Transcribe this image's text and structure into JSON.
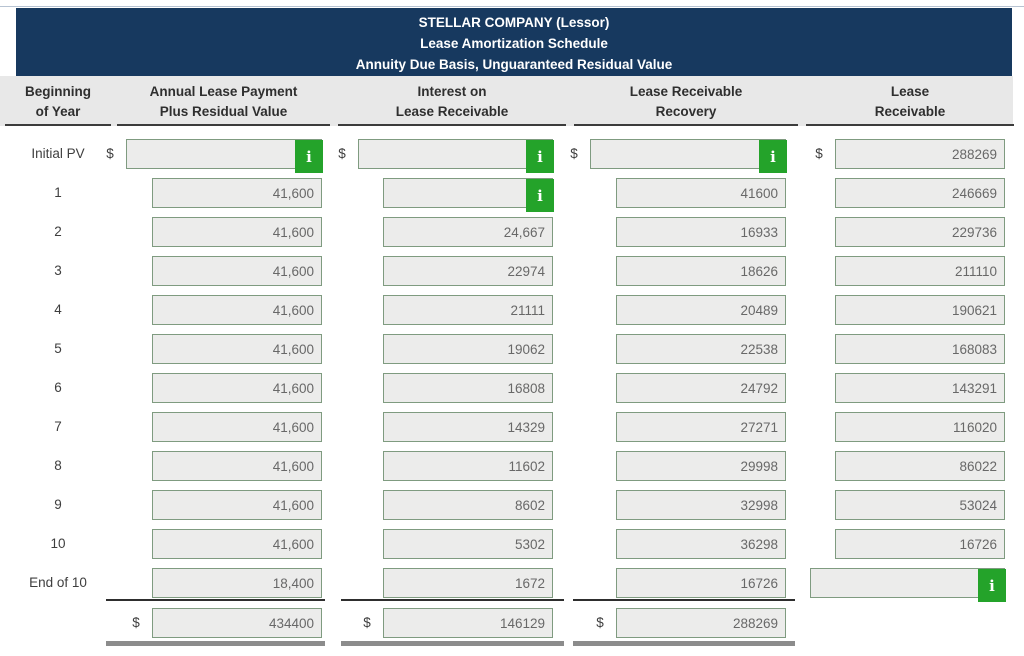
{
  "header": {
    "lines": [
      "STELLAR COMPANY (Lessor)",
      "Lease Amortization Schedule",
      "Annuity Due Basis, Unguaranteed Residual Value"
    ]
  },
  "columns": [
    {
      "id": "beginning-of-year",
      "lines": [
        "Beginning",
        "of Year"
      ]
    },
    {
      "id": "annual-lease-payment",
      "lines": [
        "Annual Lease Payment",
        "Plus Residual Value"
      ]
    },
    {
      "id": "interest-on-lease-receivable",
      "lines": [
        "Interest on",
        "Lease Receivable"
      ]
    },
    {
      "id": "lease-receivable-recovery",
      "lines": [
        "Lease Receivable",
        "Recovery"
      ]
    },
    {
      "id": "lease-receivable",
      "lines": [
        "Lease",
        "Receivable"
      ]
    }
  ],
  "currency_symbol": "$",
  "info_icon_glyph": "i",
  "rows": [
    {
      "id": "initial-pv",
      "label": "Initial PV",
      "cells": {
        "payment": {
          "value": "",
          "dollar": true,
          "info": true,
          "wide": true
        },
        "interest": {
          "value": "",
          "dollar": true,
          "info": true,
          "wide": true
        },
        "recovery": {
          "value": "",
          "dollar": true,
          "info": true,
          "wide": true
        },
        "receivable": {
          "value": "288269",
          "dollar": true
        }
      }
    },
    {
      "id": "year-1",
      "label": "1",
      "cells": {
        "payment": {
          "value": "41,600"
        },
        "interest": {
          "value": "",
          "info": true
        },
        "recovery": {
          "value": "41600"
        },
        "receivable": {
          "value": "246669"
        }
      }
    },
    {
      "id": "year-2",
      "label": "2",
      "cells": {
        "payment": {
          "value": "41,600"
        },
        "interest": {
          "value": "24,667"
        },
        "recovery": {
          "value": "16933"
        },
        "receivable": {
          "value": "229736"
        }
      }
    },
    {
      "id": "year-3",
      "label": "3",
      "cells": {
        "payment": {
          "value": "41,600"
        },
        "interest": {
          "value": "22974"
        },
        "recovery": {
          "value": "18626"
        },
        "receivable": {
          "value": "211110"
        }
      }
    },
    {
      "id": "year-4",
      "label": "4",
      "cells": {
        "payment": {
          "value": "41,600"
        },
        "interest": {
          "value": "21111"
        },
        "recovery": {
          "value": "20489"
        },
        "receivable": {
          "value": "190621"
        }
      }
    },
    {
      "id": "year-5",
      "label": "5",
      "cells": {
        "payment": {
          "value": "41,600"
        },
        "interest": {
          "value": "19062"
        },
        "recovery": {
          "value": "22538"
        },
        "receivable": {
          "value": "168083"
        }
      }
    },
    {
      "id": "year-6",
      "label": "6",
      "cells": {
        "payment": {
          "value": "41,600"
        },
        "interest": {
          "value": "16808"
        },
        "recovery": {
          "value": "24792"
        },
        "receivable": {
          "value": "143291"
        }
      }
    },
    {
      "id": "year-7",
      "label": "7",
      "cells": {
        "payment": {
          "value": "41,600"
        },
        "interest": {
          "value": "14329"
        },
        "recovery": {
          "value": "27271"
        },
        "receivable": {
          "value": "116020"
        }
      }
    },
    {
      "id": "year-8",
      "label": "8",
      "cells": {
        "payment": {
          "value": "41,600"
        },
        "interest": {
          "value": "11602"
        },
        "recovery": {
          "value": "29998"
        },
        "receivable": {
          "value": "86022"
        }
      }
    },
    {
      "id": "year-9",
      "label": "9",
      "cells": {
        "payment": {
          "value": "41,600"
        },
        "interest": {
          "value": "8602"
        },
        "recovery": {
          "value": "32998"
        },
        "receivable": {
          "value": "53024"
        }
      }
    },
    {
      "id": "year-10",
      "label": "10",
      "cells": {
        "payment": {
          "value": "41,600"
        },
        "interest": {
          "value": "5302"
        },
        "recovery": {
          "value": "36298"
        },
        "receivable": {
          "value": "16726"
        }
      }
    },
    {
      "id": "end-of-10",
      "label": "End of 10",
      "cells": {
        "payment": {
          "value": "18,400"
        },
        "interest": {
          "value": "1672"
        },
        "recovery": {
          "value": "16726"
        },
        "receivable": {
          "value": "",
          "info": true,
          "wide": true
        }
      }
    }
  ],
  "totals": {
    "id": "total",
    "cells": {
      "payment": {
        "value": "434400",
        "dollar": true
      },
      "interest": {
        "value": "146129",
        "dollar": true
      },
      "recovery": {
        "value": "288269",
        "dollar": true
      }
    }
  },
  "colors": {
    "header_bg": "#17395f",
    "band_bg": "#e8e8e8",
    "input_bg": "#ececeb",
    "input_border": "#7f9b80",
    "info_green": "#24a32a",
    "grand_total_bar": "#8c8c8c"
  }
}
